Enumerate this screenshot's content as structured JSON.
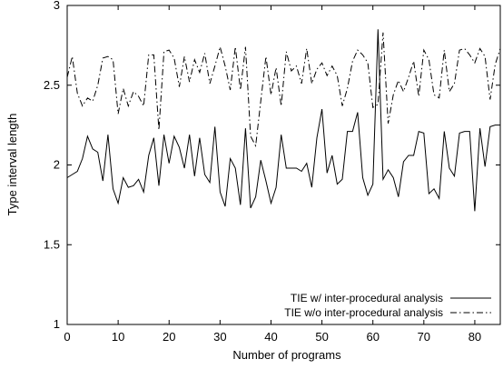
{
  "chart_data": {
    "type": "line",
    "title": "",
    "xlabel": "Number of programs",
    "ylabel": "Type interval length",
    "xlim": [
      0,
      85
    ],
    "ylim": [
      1,
      3
    ],
    "xticks": [
      0,
      10,
      20,
      30,
      40,
      50,
      60,
      70,
      80
    ],
    "yticks": [
      1,
      1.5,
      2,
      2.5,
      3
    ],
    "xtick_labels": [
      "0",
      "10",
      "20",
      "30",
      "40",
      "50",
      "60",
      "70",
      "80"
    ],
    "ytick_labels": [
      "1",
      "1.5",
      "2",
      "2.5",
      "3"
    ],
    "grid": false,
    "legend_position": "bottom-right",
    "series": [
      {
        "name": "TIE w/ inter-procedural analysis",
        "line_style": "solid",
        "color": "#000000",
        "x": [
          0,
          1,
          2,
          3,
          4,
          5,
          6,
          7,
          8,
          9,
          10,
          11,
          12,
          13,
          14,
          15,
          16,
          17,
          18,
          19,
          20,
          21,
          22,
          23,
          24,
          25,
          26,
          27,
          28,
          29,
          30,
          31,
          32,
          33,
          34,
          35,
          36,
          37,
          38,
          39,
          40,
          41,
          42,
          43,
          44,
          45,
          46,
          47,
          48,
          49,
          50,
          51,
          52,
          53,
          54,
          55,
          56,
          57,
          58,
          59,
          60,
          61,
          62,
          63,
          64,
          65,
          66,
          67,
          68,
          69,
          70,
          71,
          72,
          73,
          74,
          75,
          76,
          77,
          78,
          79,
          80,
          81,
          82,
          83,
          84,
          85
        ],
        "y": [
          1.92,
          1.94,
          1.96,
          2.04,
          2.18,
          2.1,
          2.08,
          1.9,
          2.19,
          1.85,
          1.76,
          1.92,
          1.86,
          1.87,
          1.91,
          1.83,
          2.06,
          2.17,
          1.87,
          2.19,
          2.01,
          2.18,
          2.11,
          1.98,
          2.19,
          1.93,
          2.17,
          1.94,
          1.89,
          2.24,
          1.83,
          1.74,
          2.04,
          1.98,
          1.75,
          2.23,
          1.73,
          1.8,
          2.03,
          1.9,
          1.76,
          1.86,
          2.19,
          1.98,
          1.98,
          1.98,
          1.96,
          2.01,
          1.86,
          2.17,
          2.35,
          1.95,
          2.06,
          1.88,
          1.91,
          2.21,
          2.21,
          2.33,
          1.92,
          1.81,
          1.88,
          2.85,
          1.91,
          1.97,
          1.92,
          1.8,
          2.02,
          2.06,
          2.06,
          2.21,
          2.2,
          1.82,
          1.85,
          1.79,
          2.21,
          1.98,
          1.93,
          2.2,
          2.21,
          2.21,
          1.71,
          2.23,
          1.99,
          2.24,
          2.25,
          2.25
        ]
      },
      {
        "name": "TIE w/o inter-procedural analysis",
        "line_style": "dash-dot",
        "color": "#000000",
        "x": [
          0,
          1,
          2,
          3,
          4,
          5,
          6,
          7,
          8,
          9,
          10,
          11,
          12,
          13,
          14,
          15,
          16,
          17,
          18,
          19,
          20,
          21,
          22,
          23,
          24,
          25,
          26,
          27,
          28,
          29,
          30,
          31,
          32,
          33,
          34,
          35,
          36,
          37,
          38,
          39,
          40,
          41,
          42,
          43,
          44,
          45,
          46,
          47,
          48,
          49,
          50,
          51,
          52,
          53,
          54,
          55,
          56,
          57,
          58,
          59,
          60,
          61,
          62,
          63,
          64,
          65,
          66,
          67,
          68,
          69,
          70,
          71,
          72,
          73,
          74,
          75,
          76,
          77,
          78,
          79,
          80,
          81,
          82,
          83,
          84,
          85
        ],
        "y": [
          2.55,
          2.68,
          2.45,
          2.37,
          2.42,
          2.4,
          2.5,
          2.67,
          2.68,
          2.66,
          2.32,
          2.48,
          2.37,
          2.46,
          2.43,
          2.37,
          2.69,
          2.69,
          2.22,
          2.71,
          2.72,
          2.67,
          2.49,
          2.68,
          2.52,
          2.66,
          2.58,
          2.7,
          2.51,
          2.62,
          2.74,
          2.62,
          2.47,
          2.74,
          2.47,
          2.74,
          2.18,
          2.12,
          2.4,
          2.68,
          2.44,
          2.61,
          2.37,
          2.71,
          2.59,
          2.62,
          2.51,
          2.73,
          2.51,
          2.6,
          2.64,
          2.56,
          2.62,
          2.56,
          2.37,
          2.48,
          2.65,
          2.72,
          2.69,
          2.64,
          2.36,
          2.38,
          2.83,
          2.26,
          2.44,
          2.53,
          2.46,
          2.55,
          2.65,
          2.43,
          2.72,
          2.66,
          2.44,
          2.42,
          2.72,
          2.46,
          2.51,
          2.72,
          2.73,
          2.69,
          2.64,
          2.73,
          2.68,
          2.41,
          2.63,
          2.73
        ]
      }
    ]
  }
}
